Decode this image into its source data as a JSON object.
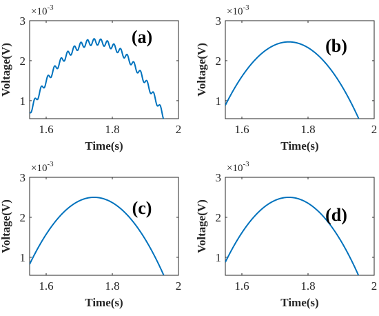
{
  "chart_data": [
    {
      "type": "line",
      "panel_label": "(a)",
      "xlabel": "Time(s)",
      "ylabel": "Voltage(V)",
      "y_multiplier": "×10",
      "y_exponent": "-3",
      "xlim": [
        1.55,
        2.0
      ],
      "ylim": [
        0.55,
        3.0
      ],
      "xticks": [
        "1.6",
        "1.8",
        "2"
      ],
      "yticks": [
        "1",
        "2",
        "3"
      ],
      "color": "#0072bd",
      "series": [
        {
          "shape": "parabola",
          "peak_time": 1.75,
          "peak_value": 2.47,
          "curvature": 44.0,
          "ripple_amplitude": 0.08,
          "ripple_frequency_hz": 50,
          "t_range": [
            1.55,
            1.962
          ]
        }
      ]
    },
    {
      "type": "line",
      "panel_label": "(b)",
      "xlabel": "Time(s)",
      "ylabel": "Voltage(V)",
      "y_multiplier": "×10",
      "y_exponent": "-3",
      "xlim": [
        1.55,
        2.0
      ],
      "ylim": [
        0.55,
        3.0
      ],
      "xticks": [
        "1.6",
        "1.8",
        "2"
      ],
      "yticks": [
        "1",
        "2",
        "3"
      ],
      "color": "#0072bd",
      "series": [
        {
          "shape": "parabola",
          "peak_time": 1.742,
          "peak_value": 2.47,
          "curvature": 43.0,
          "ripple_amplitude": 0,
          "ripple_frequency_hz": 0,
          "t_range": [
            1.55,
            1.962
          ]
        }
      ]
    },
    {
      "type": "line",
      "panel_label": "(c)",
      "xlabel": "Time(s)",
      "ylabel": "Voltage(V)",
      "y_multiplier": "×10",
      "y_exponent": "-3",
      "xlim": [
        1.55,
        2.0
      ],
      "ylim": [
        0.55,
        3.0
      ],
      "xticks": [
        "1.6",
        "1.8",
        "2"
      ],
      "yticks": [
        "1",
        "2",
        "3"
      ],
      "color": "#0072bd",
      "series": [
        {
          "shape": "parabola",
          "peak_time": 1.745,
          "peak_value": 2.5,
          "curvature": 44.0,
          "ripple_amplitude": 0,
          "ripple_frequency_hz": 0,
          "t_range": [
            1.55,
            1.966
          ]
        }
      ]
    },
    {
      "type": "line",
      "panel_label": "(d)",
      "xlabel": "Time(s)",
      "ylabel": "Voltage(V)",
      "y_multiplier": "×10",
      "y_exponent": "-3",
      "xlim": [
        1.55,
        2.0
      ],
      "ylim": [
        0.55,
        3.0
      ],
      "xticks": [
        "1.6",
        "1.8",
        "2"
      ],
      "yticks": [
        "1",
        "2",
        "3"
      ],
      "color": "#0072bd",
      "series": [
        {
          "shape": "parabola",
          "peak_time": 1.742,
          "peak_value": 2.5,
          "curvature": 44.0,
          "ripple_amplitude": 0,
          "ripple_frequency_hz": 0,
          "t_range": [
            1.55,
            1.962
          ]
        }
      ]
    }
  ]
}
